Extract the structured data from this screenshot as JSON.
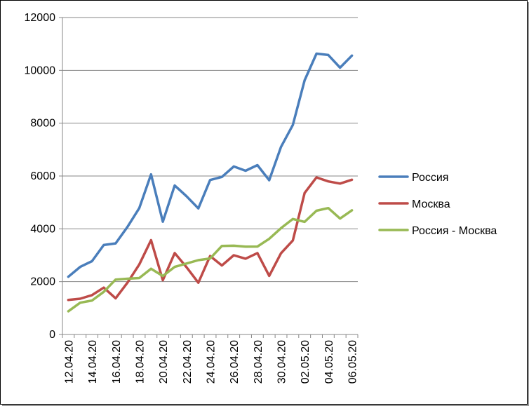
{
  "chart_data": {
    "type": "line",
    "title": "",
    "xlabel": "",
    "ylabel": "",
    "ylim": [
      0,
      12000
    ],
    "y_ticks": [
      "0",
      "2000",
      "4000",
      "6000",
      "8000",
      "10000",
      "12000"
    ],
    "x": [
      "12.04.20",
      "13.04.20",
      "14.04.20",
      "15.04.20",
      "16.04.20",
      "17.04.20",
      "18.04.20",
      "19.04.20",
      "20.04.20",
      "21.04.20",
      "22.04.20",
      "23.04.20",
      "24.04.20",
      "25.04.20",
      "26.04.20",
      "27.04.20",
      "28.04.20",
      "29.04.20",
      "30.04.20",
      "01.05.20",
      "02.05.20",
      "03.05.20",
      "04.05.20",
      "05.05.20",
      "06.05.20"
    ],
    "x_tick_labels": [
      "12.04.20",
      "14.04.20",
      "16.04.20",
      "18.04.20",
      "20.04.20",
      "22.04.20",
      "24.04.20",
      "26.04.20",
      "28.04.20",
      "30.04.20",
      "02.05.20",
      "04.05.20",
      "06.05.20"
    ],
    "grid": "horizontal",
    "legend_position": "right",
    "series": [
      {
        "name": "Россия",
        "color": "#4a7ebb",
        "values": [
          2186,
          2558,
          2774,
          3388,
          3448,
          4070,
          4785,
          6060,
          4268,
          5642,
          5236,
          4774,
          5849,
          5966,
          6361,
          6198,
          6411,
          5841,
          7099,
          7933,
          9623,
          10633,
          10581,
          10102,
          10559
        ]
      },
      {
        "name": "Москва",
        "color": "#be4b48",
        "values": [
          1306,
          1355,
          1489,
          1774,
          1370,
          1959,
          2649,
          3570,
          2054,
          3083,
          2548,
          1959,
          2971,
          2612,
          2999,
          2871,
          3083,
          2220,
          3075,
          3561,
          5358,
          5948,
          5795,
          5714,
          5858
        ]
      },
      {
        "name": "Россия - Москва",
        "color": "#98b954",
        "values": [
          880,
          1203,
          1285,
          1614,
          2078,
          2111,
          2136,
          2490,
          2214,
          2559,
          2688,
          2815,
          2878,
          3354,
          3362,
          3327,
          3328,
          3621,
          4024,
          4372,
          4265,
          4685,
          4786,
          4388,
          4701
        ]
      }
    ]
  }
}
